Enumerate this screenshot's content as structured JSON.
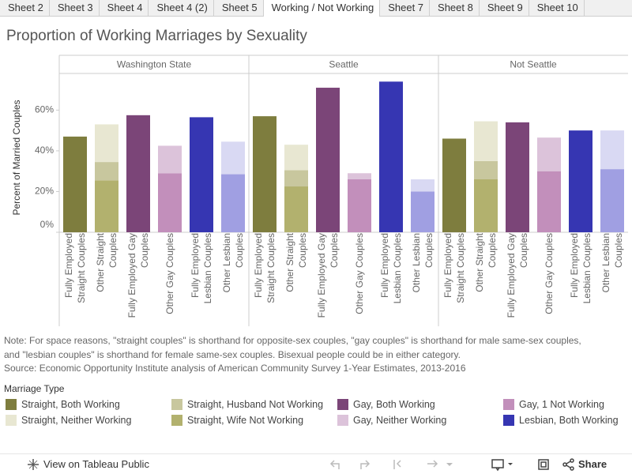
{
  "tabs": [
    "Sheet 2",
    "Sheet 3",
    "Sheet 4",
    "Sheet 4 (2)",
    "Sheet 5",
    "Working / Not Working",
    "Sheet 7",
    "Sheet 8",
    "Sheet 9",
    "Sheet 10"
  ],
  "active_tab": 5,
  "chart_data": {
    "type": "bar",
    "stacked": true,
    "title": "Proportion of Working Marriages by Sexuality",
    "y_label": "Percent of Married Couples",
    "panels": [
      "Washington State",
      "Seattle",
      "Not Seattle"
    ],
    "categories": [
      "Fully Employed Straight Couples",
      "Other Straight Couples",
      "Fully Employed Gay Couples",
      "Other Gay Couples",
      "Fully Employed Lesbian Couples",
      "Other Lesbian Couples"
    ],
    "ylim": [
      0,
      78
    ],
    "yticks": [
      {
        "value": 0,
        "label": "0%"
      },
      {
        "value": 20,
        "label": "20%"
      },
      {
        "value": 40,
        "label": "40%"
      },
      {
        "value": 60,
        "label": "60%"
      }
    ],
    "legend_title": "Marriage Type",
    "series": [
      {
        "name": "Straight, Both Working",
        "color": "#7e7d3e",
        "values": [
          [
            47,
            null,
            null,
            null,
            null,
            null
          ],
          [
            57,
            null,
            null,
            null,
            null,
            null
          ],
          [
            46,
            null,
            null,
            null,
            null,
            null
          ]
        ]
      },
      {
        "name": "Straight, Neither Working",
        "color": "#e8e7d2",
        "values": [
          [
            null,
            18.5,
            null,
            null,
            null,
            null
          ],
          [
            null,
            12.5,
            null,
            null,
            null,
            null
          ],
          [
            null,
            19.5,
            null,
            null,
            null,
            null
          ]
        ]
      },
      {
        "name": "Straight, Husband Not Working",
        "color": "#c8c79e",
        "values": [
          [
            null,
            9,
            null,
            null,
            null,
            null
          ],
          [
            null,
            8,
            null,
            null,
            null,
            null
          ],
          [
            null,
            9,
            null,
            null,
            null,
            null
          ]
        ]
      },
      {
        "name": "Straight, Wife Not Working",
        "color": "#b2b16e",
        "values": [
          [
            null,
            25.5,
            null,
            null,
            null,
            null
          ],
          [
            null,
            22.5,
            null,
            null,
            null,
            null
          ],
          [
            null,
            26,
            null,
            null,
            null,
            null
          ]
        ]
      },
      {
        "name": "Gay, Both Working",
        "color": "#7b4578",
        "values": [
          [
            null,
            null,
            57.5,
            null,
            null,
            null
          ],
          [
            null,
            null,
            71,
            null,
            null,
            null
          ],
          [
            null,
            null,
            54,
            null,
            null,
            null
          ]
        ]
      },
      {
        "name": "Gay, Neither Working",
        "color": "#dcc3da",
        "values": [
          [
            null,
            null,
            null,
            13.5,
            null,
            null
          ],
          [
            null,
            null,
            null,
            3,
            null,
            null
          ],
          [
            null,
            null,
            null,
            16.5,
            null,
            null
          ]
        ]
      },
      {
        "name": "Gay, 1 Not Working",
        "color": "#c28fbb",
        "values": [
          [
            null,
            null,
            null,
            29,
            null,
            null
          ],
          [
            null,
            null,
            null,
            26,
            null,
            null
          ],
          [
            null,
            null,
            null,
            30,
            null,
            null
          ]
        ]
      },
      {
        "name": "Lesbian, Both Working",
        "color": "#3636b2",
        "values": [
          [
            null,
            null,
            null,
            null,
            56.5,
            null
          ],
          [
            null,
            null,
            null,
            null,
            74,
            null
          ],
          [
            null,
            null,
            null,
            null,
            50,
            null
          ]
        ]
      },
      {
        "color": "#d9d9f3",
        "values": [
          [
            null,
            null,
            null,
            null,
            null,
            16
          ],
          [
            null,
            null,
            null,
            null,
            null,
            6
          ],
          [
            null,
            null,
            null,
            null,
            null,
            19
          ]
        ]
      },
      {
        "color": "#a09fe2",
        "values": [
          [
            null,
            null,
            null,
            null,
            null,
            28.5
          ],
          [
            null,
            null,
            null,
            null,
            null,
            20
          ],
          [
            null,
            null,
            null,
            null,
            null,
            31
          ]
        ]
      }
    ]
  },
  "notes": [
    "Note: For space reasons, \"straight couples\" is shorthand for opposite-sex couples, \"gay couples\" is shorthand for male same-sex couples,",
    "and \"lesbian couples\" is shorthand for female same-sex couples. Bisexual people could be in either category.",
    "Source: Economic Opportunity Institute analysis of American Community Survey 1-Year Estimates, 2013-2016"
  ],
  "toolbar": {
    "view": "View on Tableau Public",
    "share": "Share"
  }
}
